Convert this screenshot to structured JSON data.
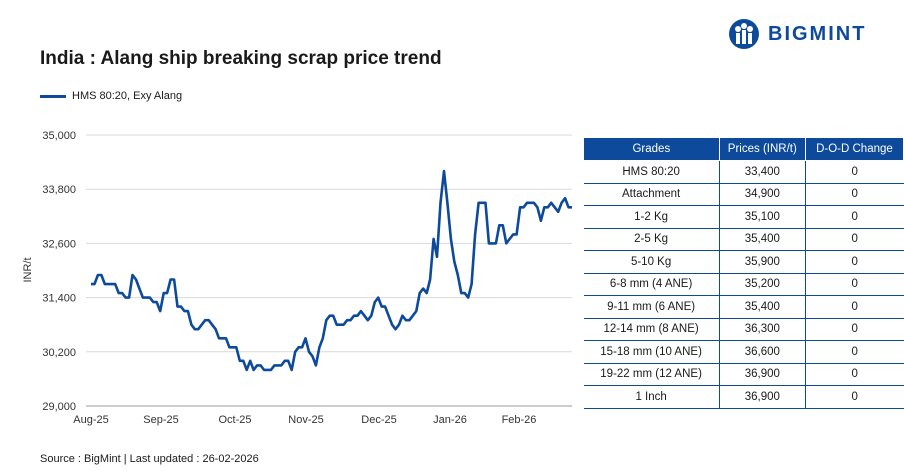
{
  "title": "India : Alang ship breaking scrap price trend",
  "brand": {
    "name": "BIGMINT",
    "color": "#0d4a9b"
  },
  "footer": "Source : BigMint | Last updated : 26-02-2026",
  "chart_data": {
    "type": "line",
    "ylabel": "INR/t",
    "ylim": [
      29000,
      35000
    ],
    "yticks": [
      "29,000",
      "30,200",
      "31,400",
      "32,600",
      "33,800",
      "35,000"
    ],
    "ytick_values": [
      29000,
      30200,
      31400,
      32600,
      33800,
      35000
    ],
    "xticks": [
      "Aug-25",
      "Sep-25",
      "Oct-25",
      "Nov-25",
      "Dec-25",
      "Jan-26",
      "Feb-26"
    ],
    "grid": true,
    "legend_position": "top-left",
    "series": [
      {
        "name": "HMS 80:20, Exy Alang",
        "color": "#0d4a9b",
        "values": [
          31700,
          31700,
          31900,
          31900,
          31700,
          31700,
          31700,
          31700,
          31500,
          31500,
          31400,
          31400,
          31900,
          31800,
          31600,
          31400,
          31400,
          31400,
          31300,
          31300,
          31100,
          31500,
          31500,
          31800,
          31800,
          31200,
          31200,
          31100,
          31100,
          30800,
          30700,
          30700,
          30800,
          30900,
          30900,
          30800,
          30700,
          30500,
          30500,
          30500,
          30300,
          30300,
          30300,
          30000,
          30000,
          29800,
          30000,
          29800,
          29900,
          29900,
          29800,
          29800,
          29800,
          29900,
          29900,
          29900,
          30000,
          30000,
          29800,
          30200,
          30300,
          30300,
          30500,
          30200,
          30100,
          29900,
          30300,
          30500,
          30900,
          31000,
          31000,
          30800,
          30800,
          30800,
          30900,
          30900,
          31000,
          31000,
          31100,
          31000,
          30900,
          31000,
          31300,
          31400,
          31200,
          31200,
          31000,
          30800,
          30700,
          30800,
          31000,
          30900,
          30900,
          31000,
          31100,
          31500,
          31600,
          31500,
          31800,
          32700,
          32300,
          33500,
          34200,
          33500,
          32700,
          32200,
          31900,
          31500,
          31500,
          31400,
          31700,
          32800,
          33500,
          33500,
          33500,
          32600,
          32600,
          32600,
          33000,
          33000,
          32600,
          32700,
          32800,
          32800,
          33400,
          33400,
          33500,
          33500,
          33500,
          33400,
          33100,
          33400,
          33400,
          33500,
          33400,
          33300,
          33500,
          33600,
          33400,
          33400
        ],
        "dates_start": "Aug-25"
      }
    ]
  },
  "table": {
    "headers": [
      "Grades",
      "Prices (INR/t)",
      "D-O-D Change"
    ],
    "rows": [
      [
        "HMS 80:20",
        "33,400",
        "0"
      ],
      [
        "Attachment",
        "34,900",
        "0"
      ],
      [
        "1-2 Kg",
        "35,100",
        "0"
      ],
      [
        "2-5 Kg",
        "35,400",
        "0"
      ],
      [
        "5-10 Kg",
        "35,900",
        "0"
      ],
      [
        "6-8 mm (4 ANE)",
        "35,200",
        "0"
      ],
      [
        "9-11 mm (6 ANE)",
        "35,400",
        "0"
      ],
      [
        "12-14 mm (8 ANE)",
        "36,300",
        "0"
      ],
      [
        "15-18 mm (10 ANE)",
        "36,600",
        "0"
      ],
      [
        "19-22 mm (12 ANE)",
        "36,900",
        "0"
      ],
      [
        "1 Inch",
        "36,900",
        "0"
      ]
    ]
  }
}
